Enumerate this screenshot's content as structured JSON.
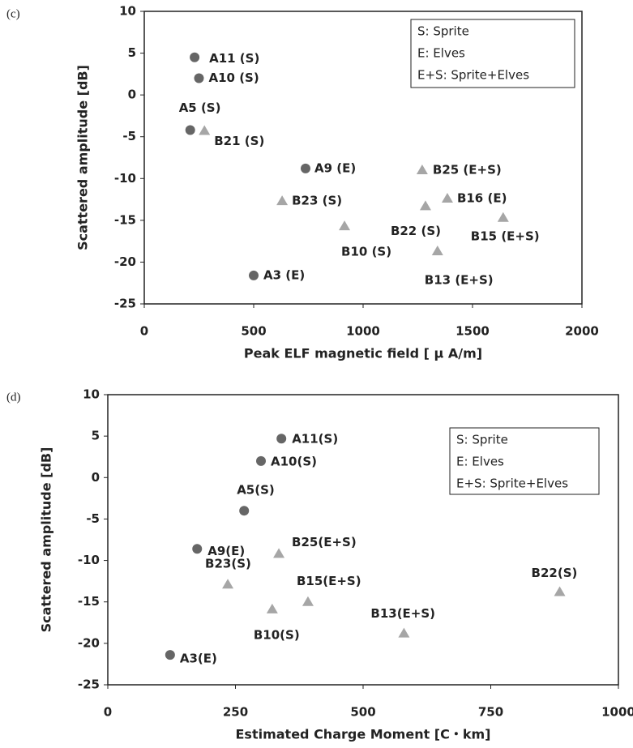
{
  "chart_data": [
    {
      "type": "scatter",
      "panel_label": "(c)",
      "xlabel": "Peak ELF magnetic field [ μ A/m]",
      "ylabel": "Scattered amplitude [dB]",
      "xlim": [
        0,
        2000
      ],
      "ylim": [
        -25,
        10
      ],
      "xticks": [
        0,
        500,
        1000,
        1500,
        2000
      ],
      "yticks": [
        -25,
        -20,
        -15,
        -10,
        -5,
        0,
        5,
        10
      ],
      "legend_text": [
        "S: Sprite",
        "E: Elves",
        "E+S: Sprite+Elves"
      ],
      "legend_corner": "upper right",
      "series": [
        {
          "marker": "circle",
          "color": "#666666",
          "point_labels": [
            "A11 (S)",
            "A10 (S)",
            "A5 (S)",
            "A9 (E)",
            "A3 (E)"
          ],
          "x": [
            230,
            250,
            210,
            737,
            500
          ],
          "values": [
            4.5,
            2,
            -4.2,
            -8.8,
            -21.6
          ]
        },
        {
          "marker": "triangle",
          "color": "#a6a6a6",
          "point_labels": [
            "B21 (S)",
            "B23 (S)",
            "B10 (S)",
            "B25 (E+S)",
            "B22 (S)",
            "B16 (E)",
            "B13 (E+S)",
            "B15 (E+S)"
          ],
          "x": [
            275,
            630,
            915,
            1270,
            1285,
            1385,
            1340,
            1640
          ],
          "values": [
            -4.3,
            -12.7,
            -15.7,
            -9,
            -13.3,
            -12.4,
            -18.7,
            -14.7
          ]
        }
      ]
    },
    {
      "type": "scatter",
      "panel_label": "(d)",
      "xlabel": "Estimated Charge Moment [C・km]",
      "ylabel": "Scattered amplitude [dB]",
      "xlim": [
        0,
        1000
      ],
      "ylim": [
        -25,
        10
      ],
      "xticks": [
        0,
        250,
        500,
        750,
        1000
      ],
      "yticks": [
        -25,
        -20,
        -15,
        -10,
        -5,
        0,
        5,
        10
      ],
      "legend_text": [
        "S: Sprite",
        "E: Elves",
        "E+S: Sprite+Elves"
      ],
      "legend_corner": "upper right",
      "series": [
        {
          "marker": "circle",
          "color": "#666666",
          "point_labels": [
            "A11(S)",
            "A10(S)",
            "A5(S)",
            "A9(E)",
            "A3(E)"
          ],
          "x": [
            340,
            300,
            267,
            175,
            122
          ],
          "values": [
            4.7,
            2,
            -4,
            -8.6,
            -21.4
          ]
        },
        {
          "marker": "triangle",
          "color": "#a6a6a6",
          "point_labels": [
            "B23(S)",
            "B25(E+S)",
            "B10(S)",
            "B15(E+S)",
            "B13(E+S)",
            "B22(S)"
          ],
          "x": [
            235,
            335,
            322,
            392,
            580,
            885
          ],
          "values": [
            -12.9,
            -9.2,
            -15.9,
            -15,
            -18.8,
            -13.8
          ]
        }
      ]
    }
  ]
}
